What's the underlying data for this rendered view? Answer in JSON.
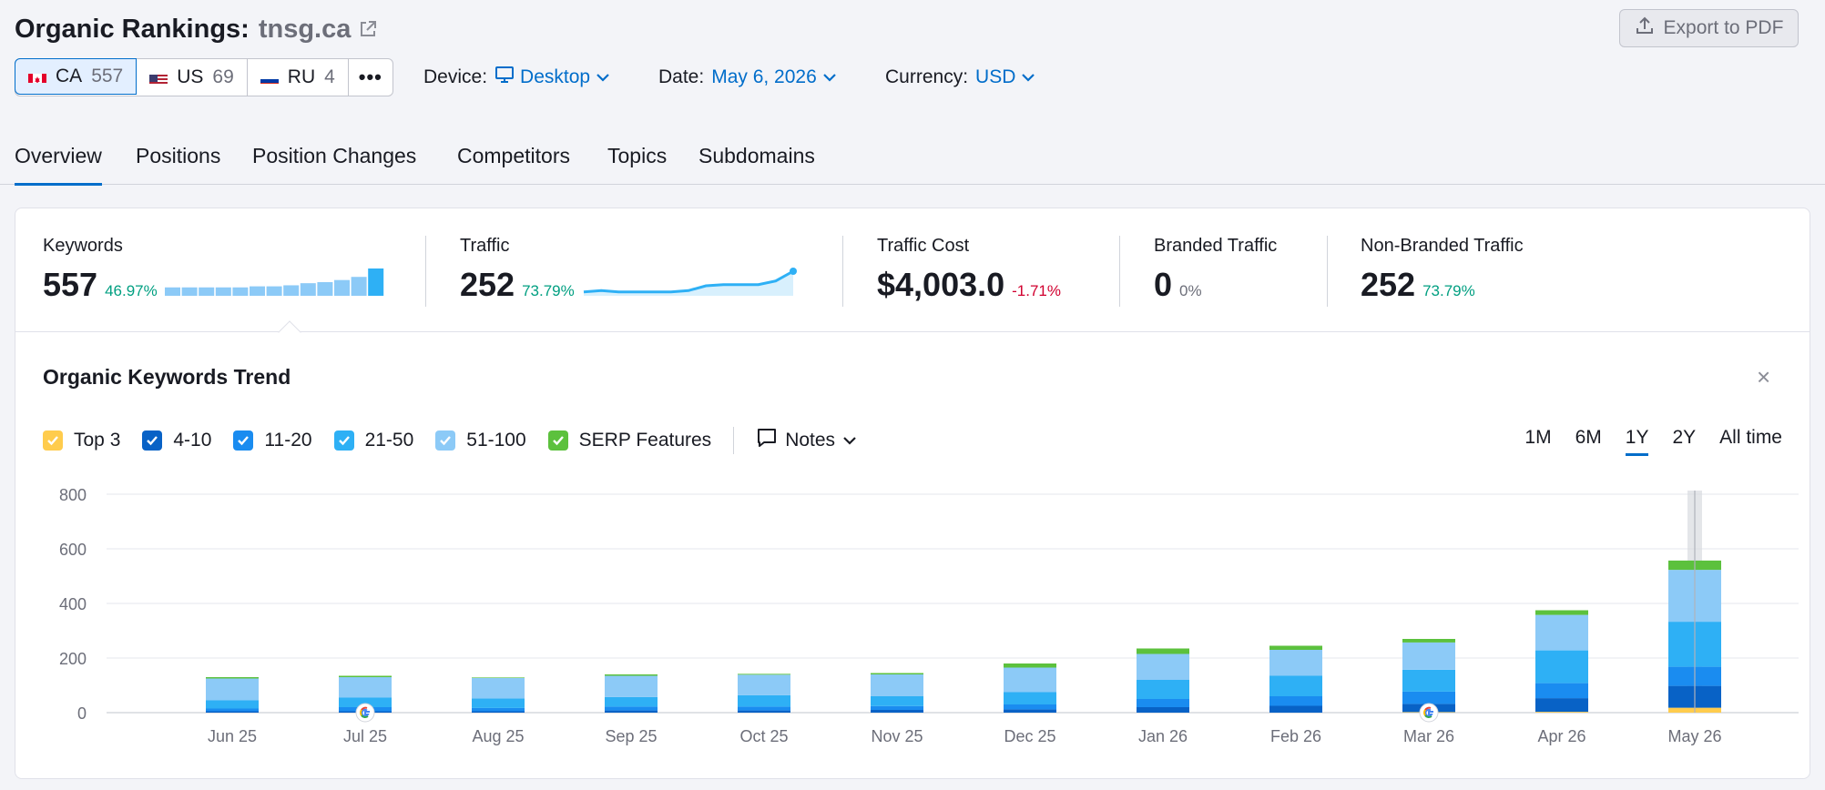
{
  "header": {
    "title": "Organic Rankings:",
    "domain": "tnsg.ca",
    "export_label": "Export to PDF"
  },
  "databases": [
    {
      "code": "CA",
      "count": "557",
      "active": true
    },
    {
      "code": "US",
      "count": "69",
      "active": false
    },
    {
      "code": "RU",
      "count": "4",
      "active": false
    }
  ],
  "more_label": "•••",
  "selectors": {
    "device": {
      "label": "Device:",
      "value": "Desktop"
    },
    "date": {
      "label": "Date:",
      "value": "May 6, 2026"
    },
    "currency": {
      "label": "Currency:",
      "value": "USD"
    }
  },
  "tabs": [
    {
      "label": "Overview",
      "active": true
    },
    {
      "label": "Positions",
      "active": false
    },
    {
      "label": "Position Changes",
      "active": false
    },
    {
      "label": "Competitors",
      "active": false
    },
    {
      "label": "Topics",
      "active": false
    },
    {
      "label": "Subdomains",
      "active": false
    }
  ],
  "kpis": {
    "keywords": {
      "label": "Keywords",
      "value": "557",
      "delta": "46.97%"
    },
    "traffic": {
      "label": "Traffic",
      "value": "252",
      "delta": "73.79%"
    },
    "traffic_cost": {
      "label": "Traffic Cost",
      "value": "$4,003.0",
      "delta": "-1.71%"
    },
    "branded": {
      "label": "Branded Traffic",
      "value": "0",
      "delta": "0%"
    },
    "nonbranded": {
      "label": "Non-Branded Traffic",
      "value": "252",
      "delta": "73.79%"
    }
  },
  "sparklines": {
    "keywords_bars": [
      8,
      8,
      8,
      8,
      8,
      9,
      9,
      10,
      12,
      13,
      15,
      18,
      26
    ],
    "traffic_line": [
      1,
      2,
      1,
      1,
      1,
      1,
      2,
      6,
      7,
      7,
      7,
      10,
      18
    ]
  },
  "trend": {
    "title": "Organic Keywords Trend",
    "close_label": "×",
    "legend": [
      {
        "label": "Top 3",
        "color": "#ffcc4d"
      },
      {
        "label": "4-10",
        "color": "#0862c6"
      },
      {
        "label": "11-20",
        "color": "#1a8cf0"
      },
      {
        "label": "21-50",
        "color": "#2eb0f5"
      },
      {
        "label": "51-100",
        "color": "#8ccaf7"
      },
      {
        "label": "SERP Features",
        "color": "#5cc13d"
      }
    ],
    "notes_label": "Notes",
    "ranges": [
      {
        "label": "1M",
        "active": false
      },
      {
        "label": "6M",
        "active": false
      },
      {
        "label": "1Y",
        "active": true
      },
      {
        "label": "2Y",
        "active": false
      },
      {
        "label": "All time",
        "active": false
      }
    ]
  },
  "colors": {
    "accent": "#006dca",
    "positive": "#009f81",
    "negative": "#d1002f"
  },
  "chart_data": {
    "type": "bar",
    "stacked": true,
    "categories": [
      "Jun 25",
      "Jul 25",
      "Aug 25",
      "Sep 25",
      "Oct 25",
      "Nov 25",
      "Dec 25",
      "Jan 26",
      "Feb 26",
      "Mar 26",
      "Apr 26",
      "May 26"
    ],
    "yticks": [
      0,
      200,
      400,
      600,
      800
    ],
    "ylim": [
      0,
      800
    ],
    "grid": true,
    "series": [
      {
        "name": "Top 3",
        "color": "#ffcc4d",
        "values": [
          0,
          0,
          0,
          0,
          0,
          0,
          0,
          0,
          0,
          2,
          3,
          18
        ]
      },
      {
        "name": "4-10",
        "color": "#0862c6",
        "values": [
          5,
          5,
          5,
          8,
          8,
          10,
          12,
          20,
          25,
          30,
          50,
          80
        ]
      },
      {
        "name": "11-20",
        "color": "#1a8cf0",
        "values": [
          10,
          15,
          12,
          14,
          14,
          14,
          18,
          30,
          35,
          45,
          55,
          70
        ]
      },
      {
        "name": "21-50",
        "color": "#2eb0f5",
        "values": [
          30,
          35,
          35,
          35,
          42,
          36,
          45,
          70,
          75,
          80,
          120,
          165
        ]
      },
      {
        "name": "51-100",
        "color": "#8ccaf7",
        "values": [
          80,
          75,
          75,
          78,
          75,
          80,
          90,
          95,
          95,
          100,
          130,
          190
        ]
      },
      {
        "name": "SERP Features",
        "color": "#5cc13d",
        "values": [
          5,
          5,
          2,
          5,
          3,
          5,
          15,
          20,
          15,
          13,
          17,
          34
        ]
      }
    ],
    "google_update_markers": [
      "Jul 25",
      "Mar 26"
    ],
    "highlighted_category": "May 26"
  }
}
